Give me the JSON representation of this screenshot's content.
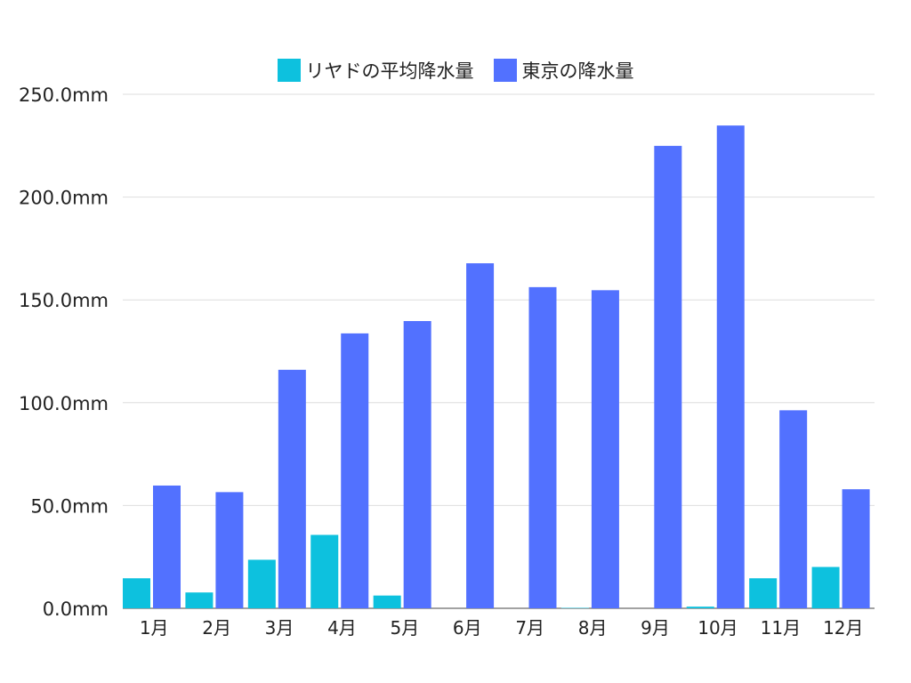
{
  "chart_data": {
    "type": "bar",
    "categories": [
      "1月",
      "2月",
      "3月",
      "4月",
      "5月",
      "6月",
      "7月",
      "8月",
      "9月",
      "10月",
      "11月",
      "12月"
    ],
    "series": [
      {
        "name": "リヤドの平均降水量",
        "color": "#0dc1de",
        "values": [
          14.6,
          7.7,
          23.6,
          35.7,
          6.2,
          0,
          0,
          0.2,
          0,
          0.8,
          14.6,
          20.1
        ]
      },
      {
        "name": "東京の降水量",
        "color": "#5271ff",
        "values": [
          59.7,
          56.5,
          116.0,
          133.7,
          139.7,
          167.8,
          156.2,
          154.7,
          224.9,
          234.8,
          96.3,
          57.9
        ]
      }
    ],
    "yticks": [
      "0.0mm",
      "50.0mm",
      "100.0mm",
      "150.0mm",
      "200.0mm",
      "250.0mm"
    ],
    "ylim": [
      0,
      250
    ],
    "grid": true,
    "legend_position": "top-center"
  }
}
